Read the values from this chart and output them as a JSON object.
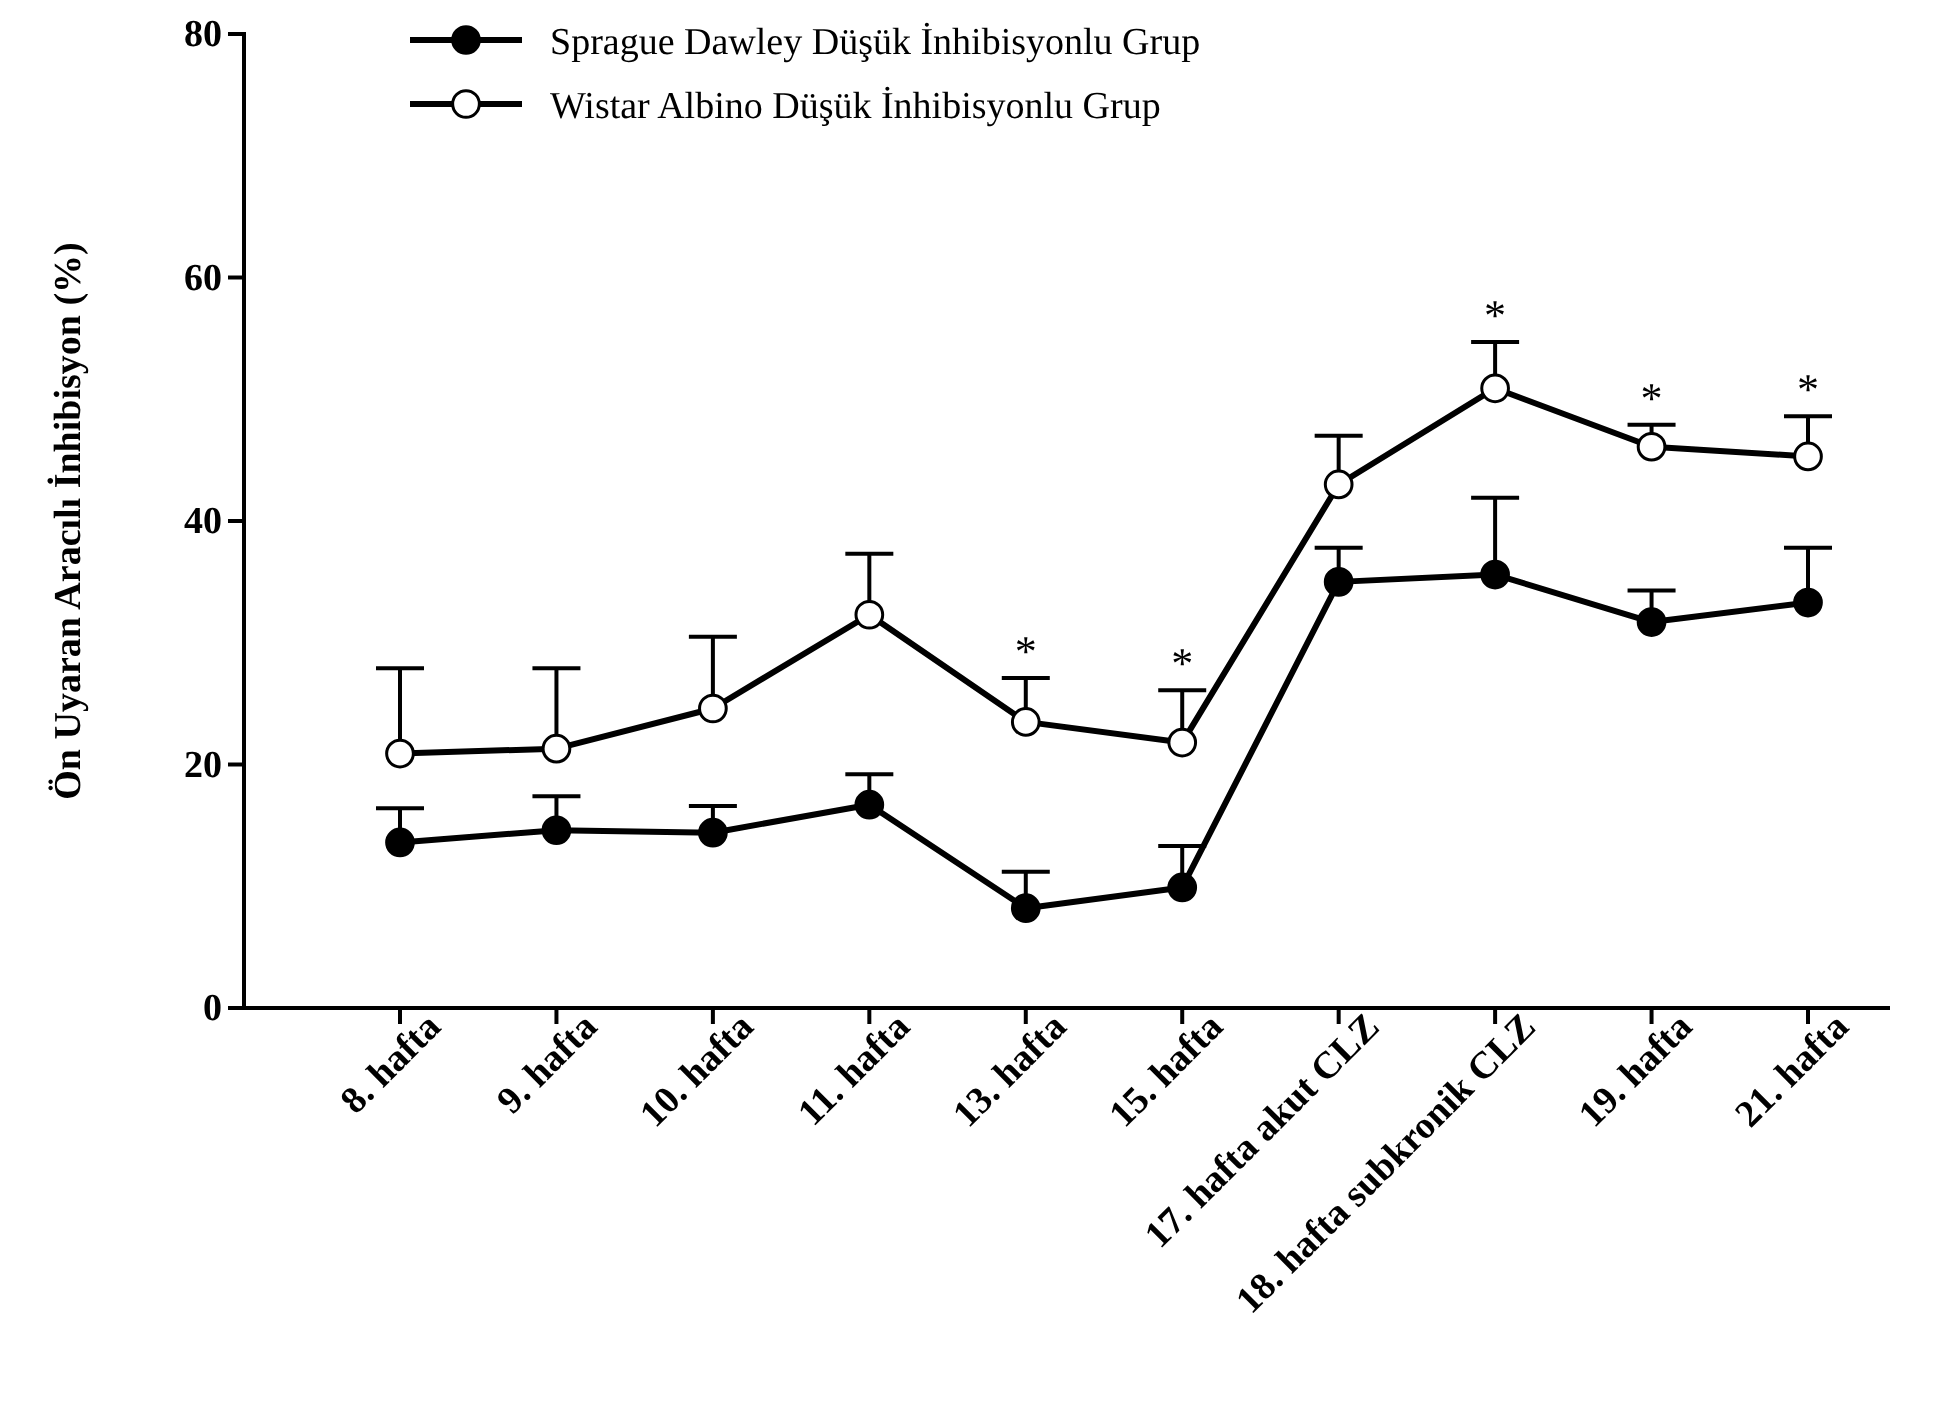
{
  "chart_data": {
    "type": "line",
    "ylabel": "Ön Uyaran Aracılı İnhibisyon (%)",
    "categories": [
      "8. hafta",
      "9. hafta",
      "10. hafta",
      "11. hafta",
      "13. hafta",
      "15. hafta",
      "17. hafta akut CLZ",
      "18. hafta subkronik CLZ",
      "19. hafta",
      "21. hafta"
    ],
    "series": [
      {
        "name": "Sprague Dawley Düşük İnhibisyonlu Grup",
        "color": "#000000",
        "marker": "circle",
        "values": [
          13.6,
          14.6,
          14.4,
          16.7,
          8.2,
          9.9,
          35.0,
          35.6,
          31.7,
          33.3
        ],
        "errors": [
          [
            13.6,
            16.4
          ],
          [
            14.6,
            17.4
          ],
          [
            14.4,
            16.6
          ],
          [
            16.7,
            19.2
          ],
          [
            8.2,
            11.2
          ],
          [
            9.9,
            13.3
          ],
          [
            35.0,
            37.8
          ],
          [
            35.6,
            41.9
          ],
          [
            31.7,
            34.3
          ],
          [
            33.3,
            37.8
          ]
        ]
      },
      {
        "name": "Wistar Albino Düşük İnhibisyonlu Grup",
        "color": "#000000",
        "marker": "circle",
        "values": [
          20.9,
          21.3,
          24.6,
          32.3,
          23.5,
          21.8,
          43.0,
          50.9,
          46.1,
          45.3
        ],
        "errors": [
          [
            20.9,
            27.9
          ],
          [
            21.3,
            27.9
          ],
          [
            24.6,
            30.5
          ],
          [
            32.3,
            37.3
          ],
          [
            23.5,
            27.1
          ],
          [
            21.8,
            26.1
          ],
          [
            43.0,
            47.0
          ],
          [
            50.9,
            54.7
          ],
          [
            46.1,
            47.9
          ],
          [
            45.3,
            48.6
          ]
        ]
      }
    ],
    "annotations": [
      {
        "text": "*",
        "x": "13. hafta",
        "y": 27.1
      },
      {
        "text": "*",
        "x": "15. hafta",
        "y": 26.1
      },
      {
        "text": "*",
        "x": "18. hafta subkronik CLZ",
        "y": 54.7
      },
      {
        "text": "*",
        "x": "19. hafta",
        "y": 47.9
      },
      {
        "text": "*",
        "x": "21. hafta",
        "y": 48.6
      }
    ],
    "ylim": [
      0,
      80
    ],
    "yticks": [
      0,
      20,
      40,
      60,
      80
    ],
    "legend": "top left",
    "grid": false,
    "line_style": "solid"
  }
}
